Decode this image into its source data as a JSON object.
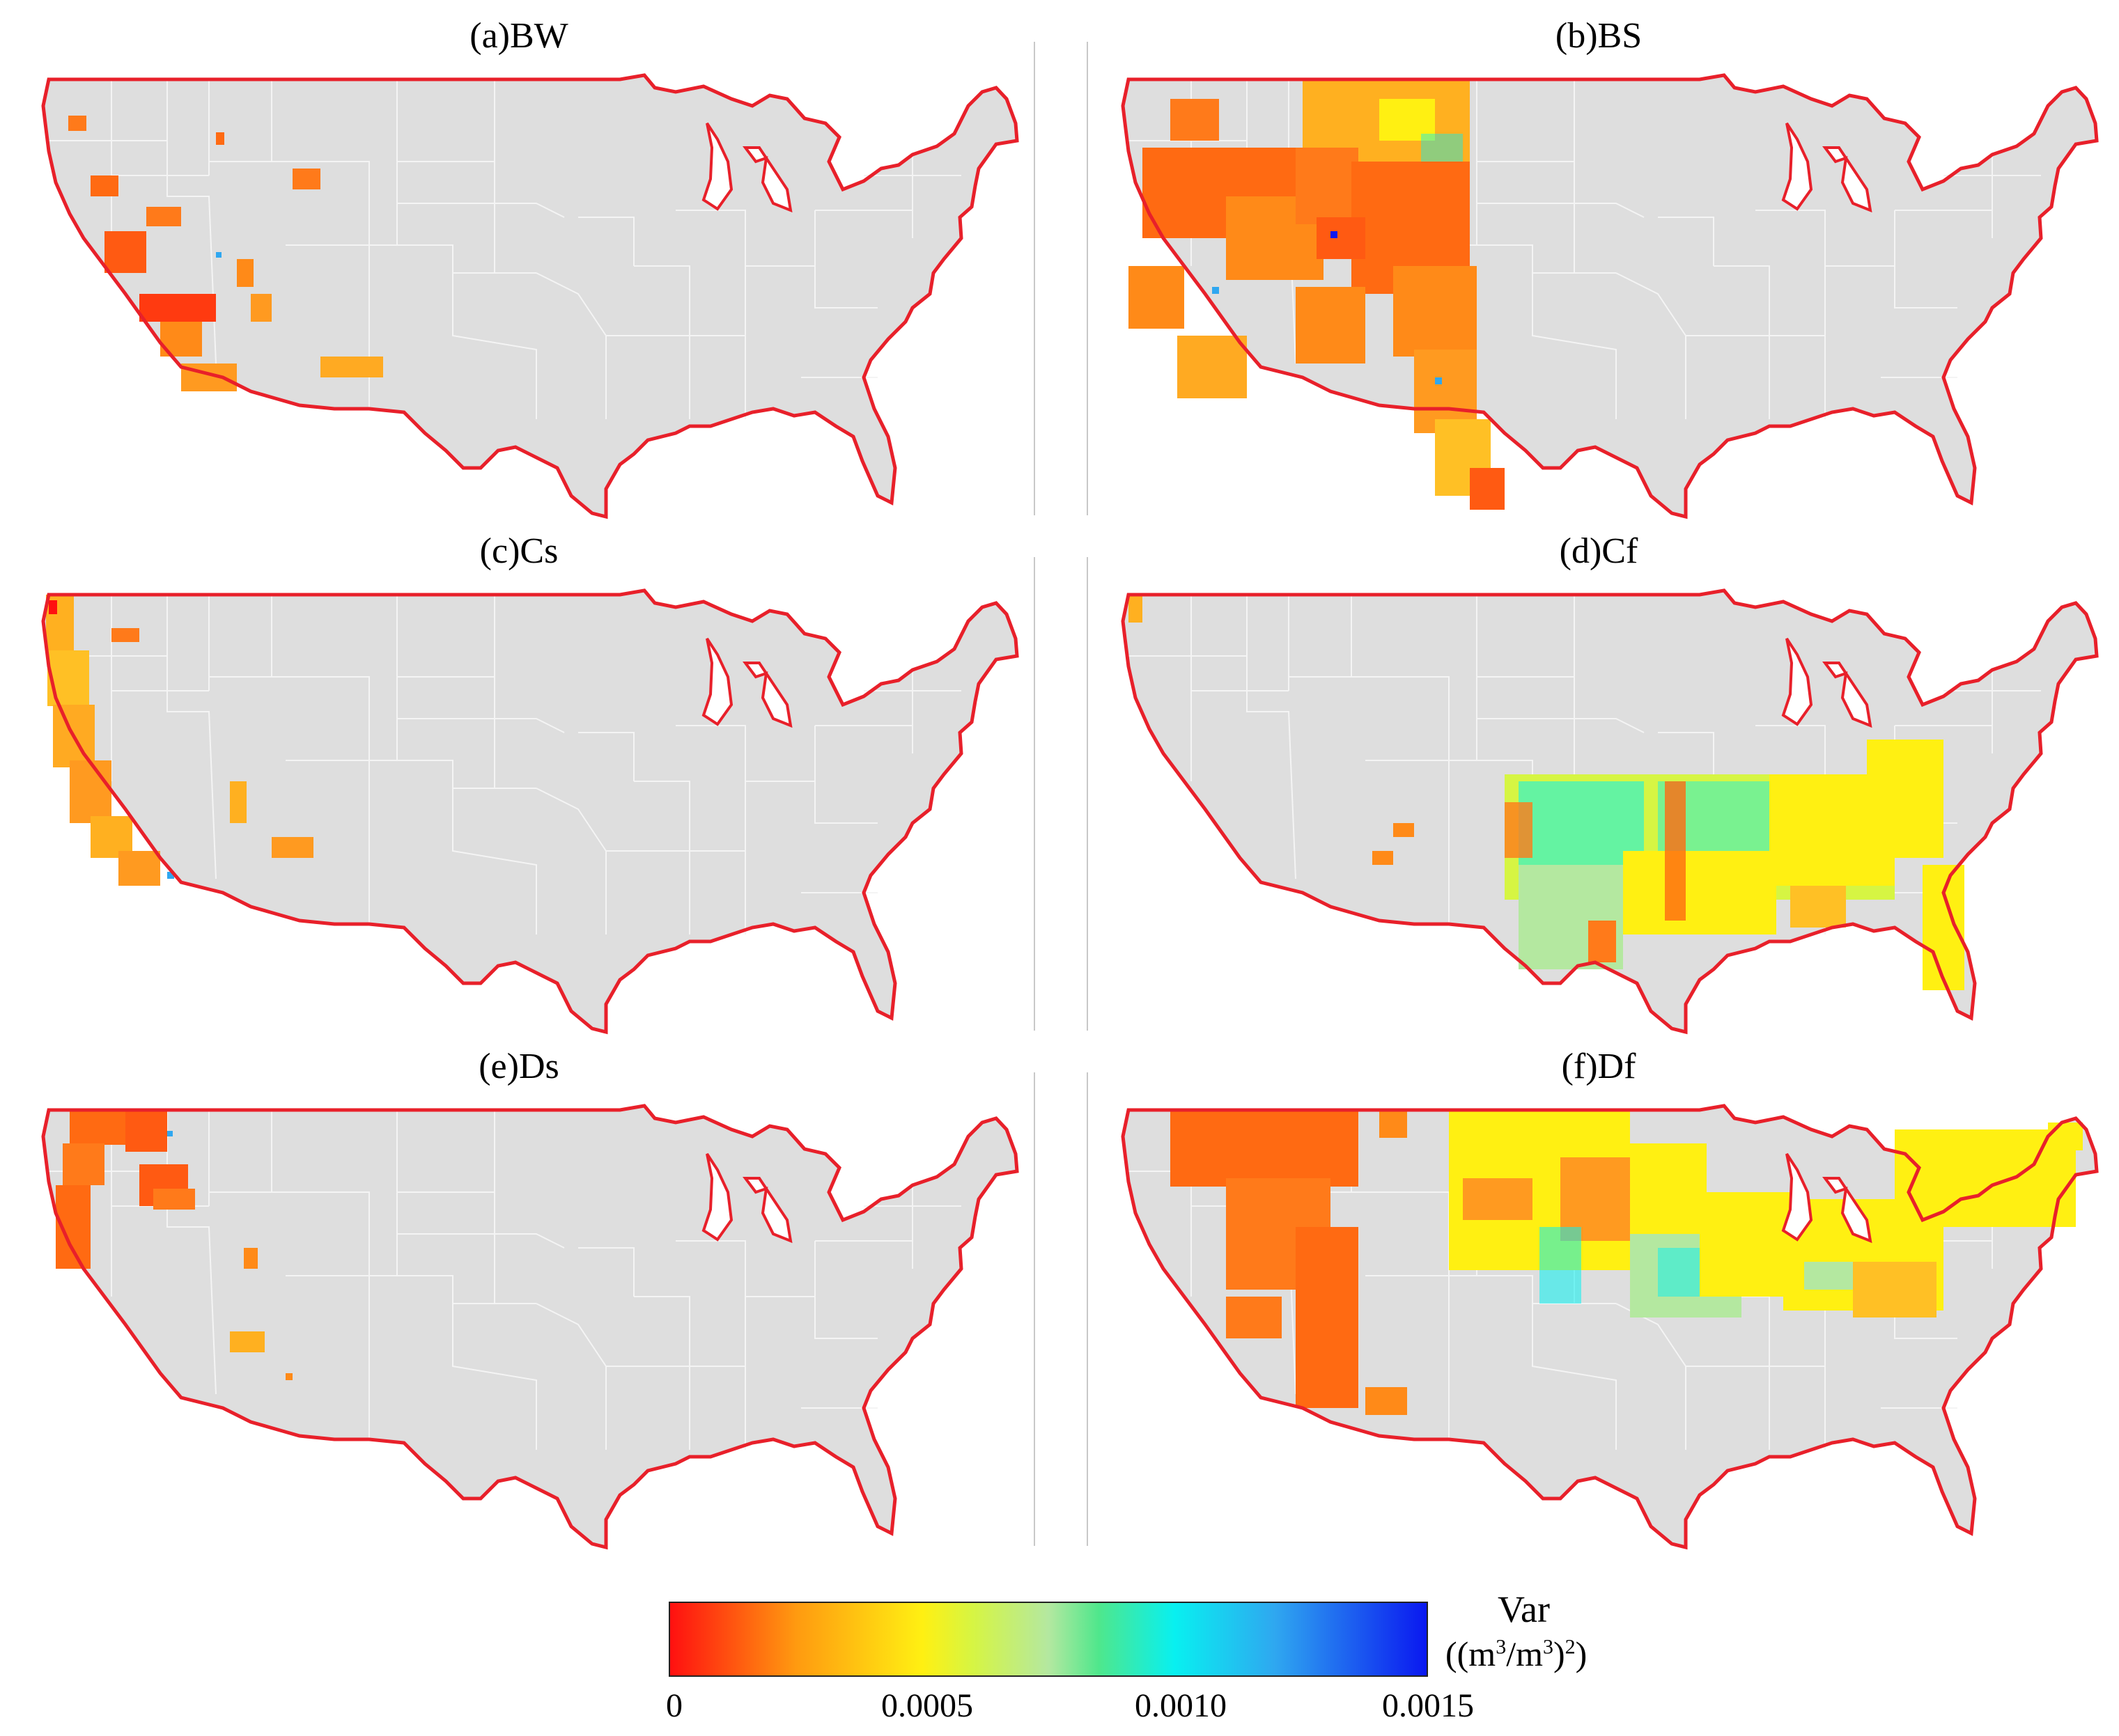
{
  "figure": {
    "panels": [
      {
        "id": "a",
        "title": "(a)BW"
      },
      {
        "id": "b",
        "title": "(b)BS"
      },
      {
        "id": "c",
        "title": "(c)Cs"
      },
      {
        "id": "d",
        "title": "(d)Cf"
      },
      {
        "id": "e",
        "title": "(e)Ds"
      },
      {
        "id": "f",
        "title": "(f)Df"
      }
    ],
    "map_colors": {
      "land": "#dedede",
      "state_borders": "#f2f2f2",
      "outline": "#e8202a"
    },
    "colorbar": {
      "title": "Var",
      "unit_main": "((m",
      "unit_sup1": "3",
      "unit_mid": "/m",
      "unit_sup2": "3",
      "unit_end": ")",
      "unit_sup3": "2",
      "unit_close": ")",
      "min": 0,
      "max": 0.0015,
      "ticks": [
        "0",
        "0.0005",
        "0.0010",
        "0.0015"
      ],
      "tick_values": [
        0,
        0.0005,
        0.001,
        0.0015
      ],
      "stops": [
        {
          "value": 0,
          "color": "#ff1010"
        },
        {
          "value": 0.00025,
          "color": "#ff9a10"
        },
        {
          "value": 0.0005,
          "color": "#fff012"
        },
        {
          "value": 0.0006,
          "color": "#d6f543"
        },
        {
          "value": 0.00075,
          "color": "#b4e8a0"
        },
        {
          "value": 0.00085,
          "color": "#4fe78c"
        },
        {
          "value": 0.001,
          "color": "#08f0f0"
        },
        {
          "value": 0.0012,
          "color": "#2fa7f0"
        },
        {
          "value": 0.0015,
          "color": "#0a18f0"
        }
      ]
    }
  }
}
